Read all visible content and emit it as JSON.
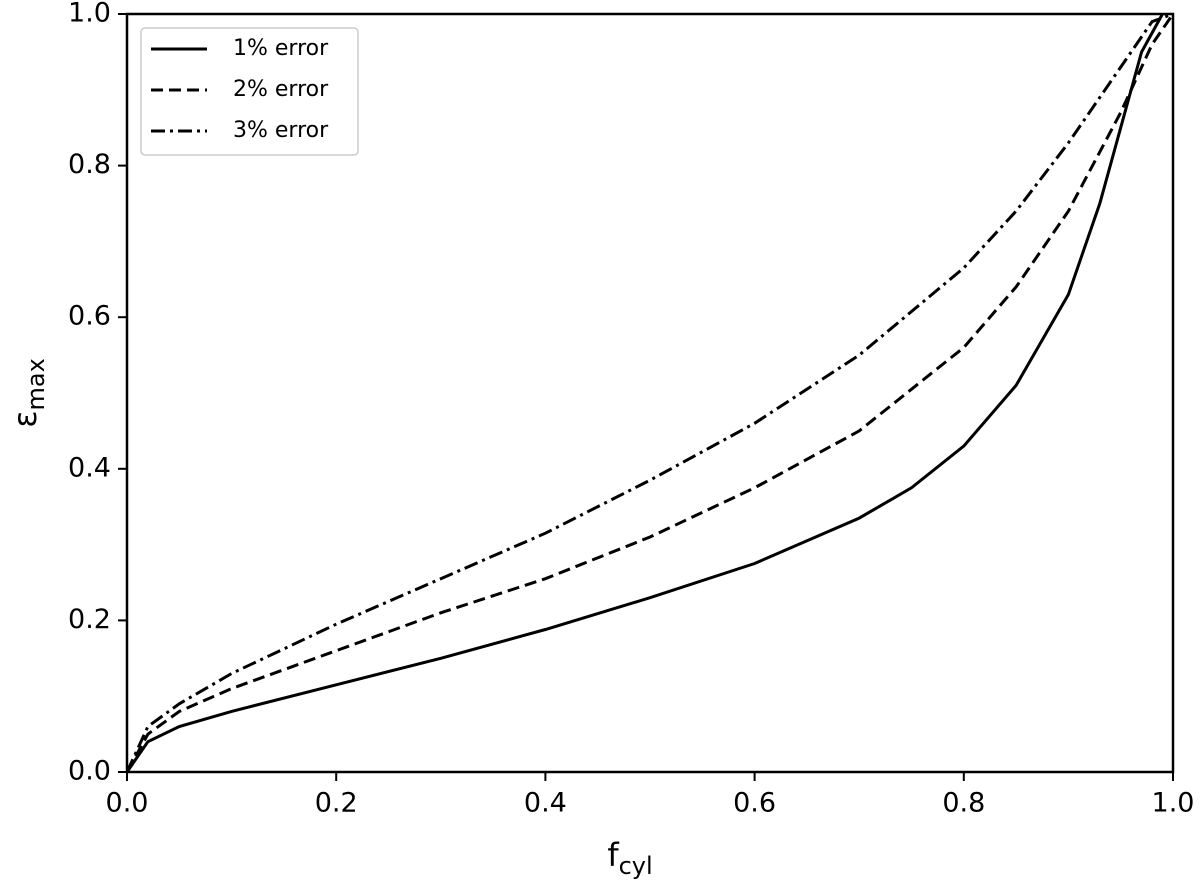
{
  "chart_data": {
    "type": "line",
    "xlabel": {
      "main": "f",
      "sub": "cyl"
    },
    "ylabel": {
      "main": "ε",
      "sub": "max"
    },
    "xlim": [
      0,
      1
    ],
    "ylim": [
      0,
      1
    ],
    "xticks": [
      {
        "value": 0,
        "label": "0.0"
      },
      0.2,
      0.4,
      0.6,
      0.8,
      {
        "value": 1,
        "label": "1.0"
      }
    ],
    "yticks": [
      {
        "value": 0,
        "label": "0.0"
      },
      0.2,
      0.4,
      0.6,
      0.8,
      {
        "value": 1,
        "label": "1.0"
      }
    ],
    "legend": "upper left",
    "series": [
      {
        "name": "1% error",
        "color": "#000000",
        "dash": "solid",
        "x": [
          0,
          0.02,
          0.05,
          0.1,
          0.2,
          0.3,
          0.4,
          0.5,
          0.6,
          0.7,
          0.75,
          0.8,
          0.85,
          0.9,
          0.93,
          0.95,
          0.97,
          0.99
        ],
        "values": [
          0,
          0.04,
          0.06,
          0.08,
          0.115,
          0.15,
          0.188,
          0.23,
          0.275,
          0.335,
          0.375,
          0.43,
          0.51,
          0.63,
          0.75,
          0.85,
          0.95,
          1.0
        ]
      },
      {
        "name": "2% error",
        "color": "#000000",
        "dash": "dashed",
        "x": [
          0,
          0.02,
          0.05,
          0.1,
          0.2,
          0.3,
          0.4,
          0.5,
          0.6,
          0.7,
          0.8,
          0.85,
          0.9,
          0.95,
          0.98,
          1.0
        ],
        "values": [
          0,
          0.05,
          0.08,
          0.11,
          0.16,
          0.21,
          0.255,
          0.31,
          0.375,
          0.45,
          0.56,
          0.64,
          0.74,
          0.87,
          0.96,
          1.0
        ]
      },
      {
        "name": "3% error",
        "color": "#000000",
        "dash": "dashdot",
        "x": [
          0,
          0.02,
          0.05,
          0.1,
          0.2,
          0.3,
          0.4,
          0.5,
          0.6,
          0.7,
          0.8,
          0.85,
          0.9,
          0.95,
          0.98,
          1.0
        ],
        "values": [
          0,
          0.06,
          0.09,
          0.13,
          0.195,
          0.255,
          0.315,
          0.385,
          0.46,
          0.55,
          0.665,
          0.74,
          0.83,
          0.93,
          0.99,
          1.0
        ]
      }
    ]
  }
}
